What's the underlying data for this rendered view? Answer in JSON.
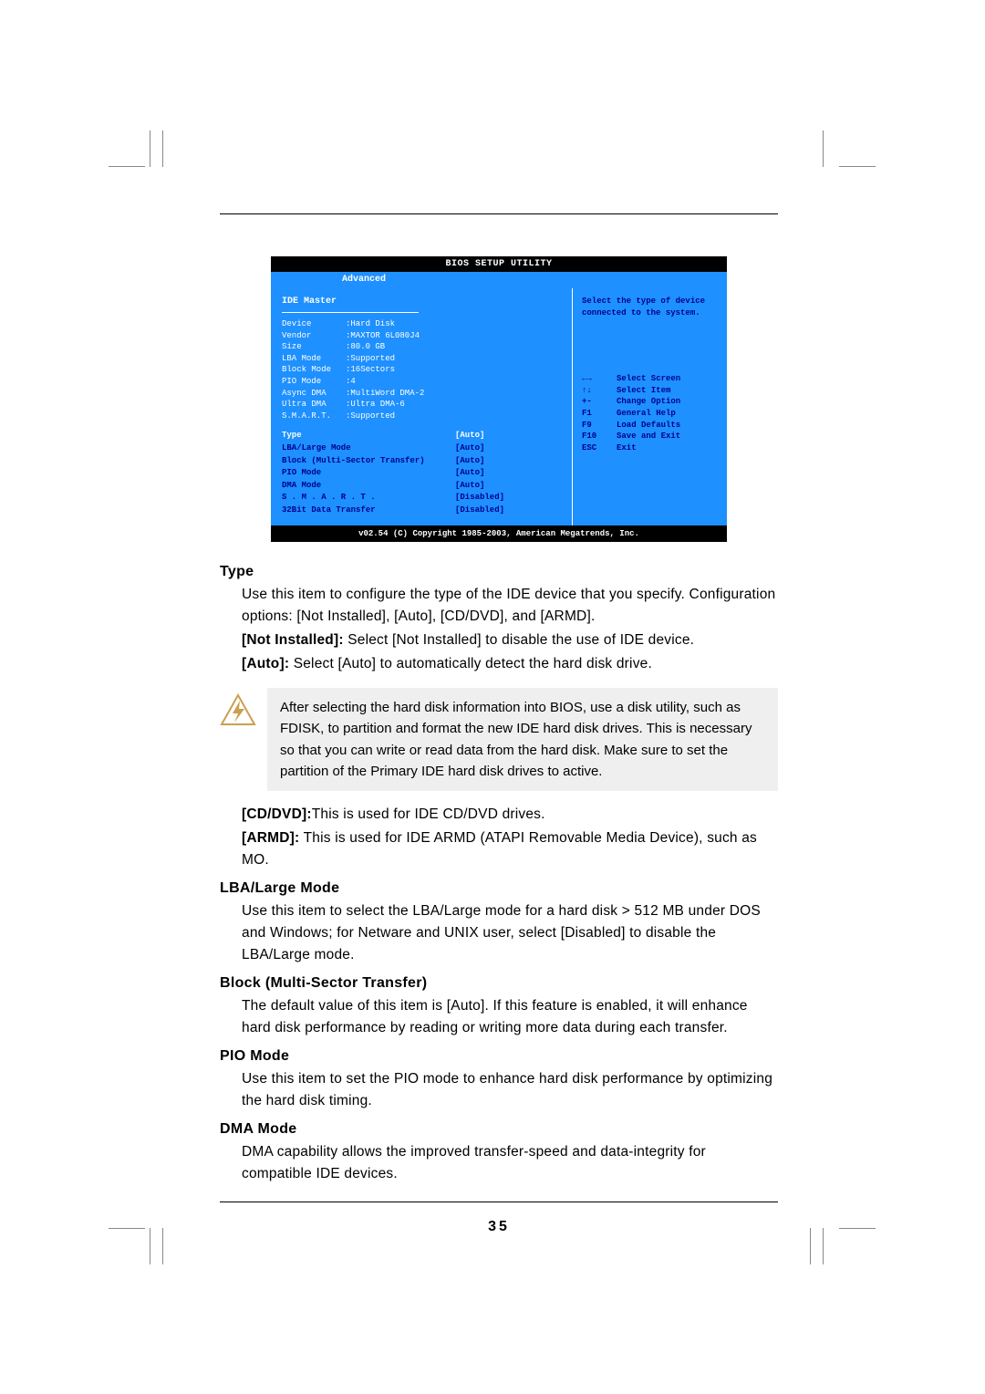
{
  "bios": {
    "title": "BIOS SETUP UTILITY",
    "active_tab": "Advanced",
    "panel_title": "IDE Master",
    "info": [
      {
        "label": "Device",
        "value": ":Hard Disk"
      },
      {
        "label": "Vendor",
        "value": ":MAXTOR 6L080J4"
      },
      {
        "label": "Size",
        "value": ":80.0 GB"
      },
      {
        "label": "LBA Mode",
        "value": ":Supported"
      },
      {
        "label": "Block Mode",
        "value": ":16Sectors"
      },
      {
        "label": "PIO Mode",
        "value": ":4"
      },
      {
        "label": "Async DMA",
        "value": ":MultiWord DMA-2"
      },
      {
        "label": "Ultra DMA",
        "value": ":Ultra DMA-6"
      },
      {
        "label": "S.M.A.R.T.",
        "value": ":Supported"
      }
    ],
    "options": [
      {
        "label": "Type",
        "value": "[Auto]",
        "selected": true
      },
      {
        "label": "LBA/Large Mode",
        "value": "[Auto]"
      },
      {
        "label": "Block (Multi-Sector Transfer)",
        "value": "[Auto]"
      },
      {
        "label": "PIO Mode",
        "value": "[Auto]"
      },
      {
        "label": "DMA Mode",
        "value": "[Auto]"
      },
      {
        "label": "S . M . A . R . T .",
        "value": "[Disabled]"
      },
      {
        "label": "32Bit Data Transfer",
        "value": "[Disabled]"
      }
    ],
    "help_top": "Select the type of device connected to the system.",
    "help_keys": [
      {
        "key": "←→",
        "desc": "Select Screen"
      },
      {
        "key": "↑↓",
        "desc": "Select Item"
      },
      {
        "key": "+-",
        "desc": "Change Option"
      },
      {
        "key": "F1",
        "desc": "General Help"
      },
      {
        "key": "F9",
        "desc": "Load Defaults"
      },
      {
        "key": "F10",
        "desc": "Save and Exit"
      },
      {
        "key": "ESC",
        "desc": "Exit"
      }
    ],
    "footer": "v02.54 (C) Copyright 1985-2003, American Megatrends, Inc."
  },
  "sections": {
    "type": {
      "title": "Type",
      "p1": "Use this item to configure the type of the IDE device that you specify. Configuration options: [Not Installed], [Auto], [CD/DVD], and [ARMD].",
      "not_installed_label": "[Not Installed]:",
      "not_installed_text": " Select [Not Installed] to disable the use of IDE device.",
      "auto_label": "[Auto]:",
      "auto_text": " Select [Auto] to automatically detect the hard disk drive."
    },
    "note": "After selecting the hard disk information into BIOS, use a disk utility, such as FDISK, to partition and format the new IDE hard disk drives. This is necessary so that you can write or read data from the hard disk. Make sure to set the partition of the Primary IDE hard disk drives to active.",
    "cddvd_label": "[CD/DVD]:",
    "cddvd_text": "This is used for IDE CD/DVD drives.",
    "armd_label": "[ARMD]:",
    "armd_text": " This is used for IDE ARMD (ATAPI Removable Media Device), such as MO.",
    "lba": {
      "title": "LBA/Large Mode",
      "text": "Use this item to select the LBA/Large mode for a hard disk > 512 MB under DOS and Windows; for Netware and UNIX user, select [Disabled] to disable the LBA/Large mode."
    },
    "block": {
      "title": "Block (Multi-Sector Transfer)",
      "text": "The default value of this item is [Auto]. If this feature is enabled, it will enhance hard disk performance by reading or writing more data during each transfer."
    },
    "pio": {
      "title": "PIO Mode",
      "text": "Use this item to set the PIO mode to enhance hard disk performance by optimizing the hard disk timing."
    },
    "dma": {
      "title": "DMA Mode",
      "text": "DMA capability allows the improved transfer-speed and data-integrity for compatible IDE devices."
    }
  },
  "page_number": "35"
}
